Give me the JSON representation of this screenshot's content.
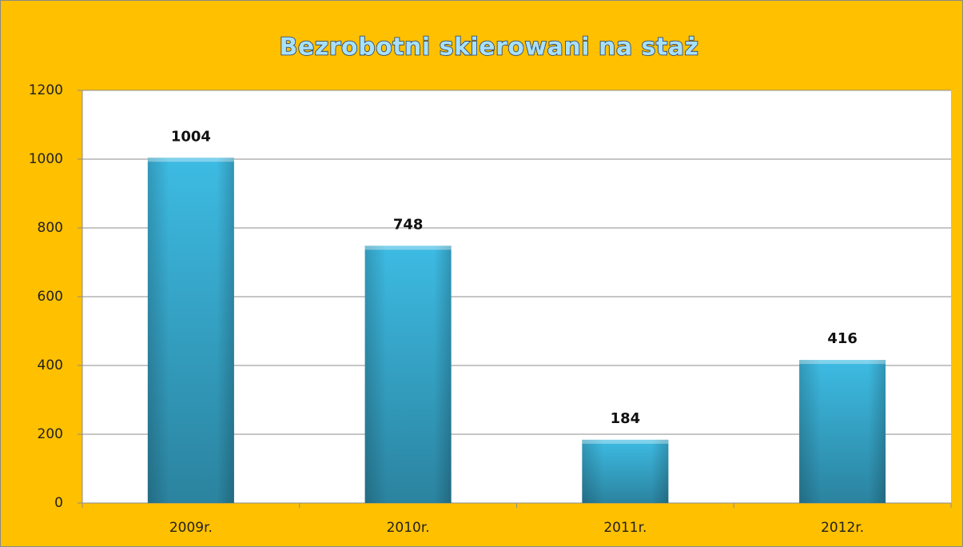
{
  "chart_data": {
    "type": "bar",
    "title": "Bezrobotni skierowani na staż",
    "categories": [
      "2009r.",
      "2010r.",
      "2011r.",
      "2012r."
    ],
    "values": [
      1004,
      748,
      184,
      416
    ],
    "color": "#3dbbe3",
    "ylim": [
      0,
      1200
    ],
    "yticks": [
      0,
      200,
      400,
      600,
      800,
      1000,
      1200
    ],
    "grid": true
  }
}
